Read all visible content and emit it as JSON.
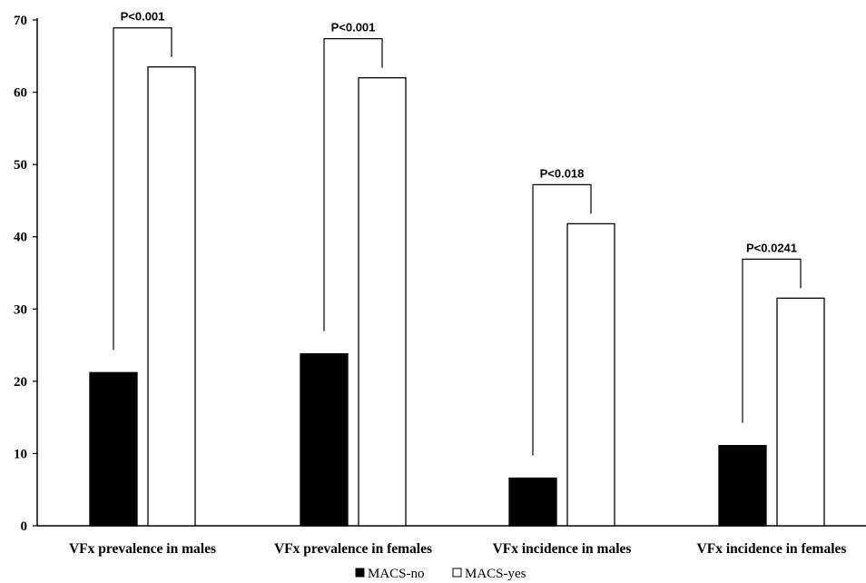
{
  "chart_data": {
    "type": "bar",
    "categories": [
      "VFx prevalence in males",
      "VFx prevalence in females",
      "VFx incidence in males",
      "VFx incidence in females"
    ],
    "series": [
      {
        "name": "MACS-no",
        "values": [
          21.2,
          23.8,
          6.6,
          11.1
        ],
        "color": "#000000"
      },
      {
        "name": "MACS-yes",
        "values": [
          63.5,
          62.0,
          41.8,
          31.5
        ],
        "color": "#ffffff"
      }
    ],
    "annotations": [
      "P<0.001",
      "P<0.001",
      "P<0.018",
      "P<0.0241"
    ],
    "ylim": [
      0,
      70
    ],
    "yticks": [
      0,
      10,
      20,
      30,
      40,
      50,
      60,
      70
    ],
    "grid": false,
    "legend_position": "bottom-center"
  }
}
